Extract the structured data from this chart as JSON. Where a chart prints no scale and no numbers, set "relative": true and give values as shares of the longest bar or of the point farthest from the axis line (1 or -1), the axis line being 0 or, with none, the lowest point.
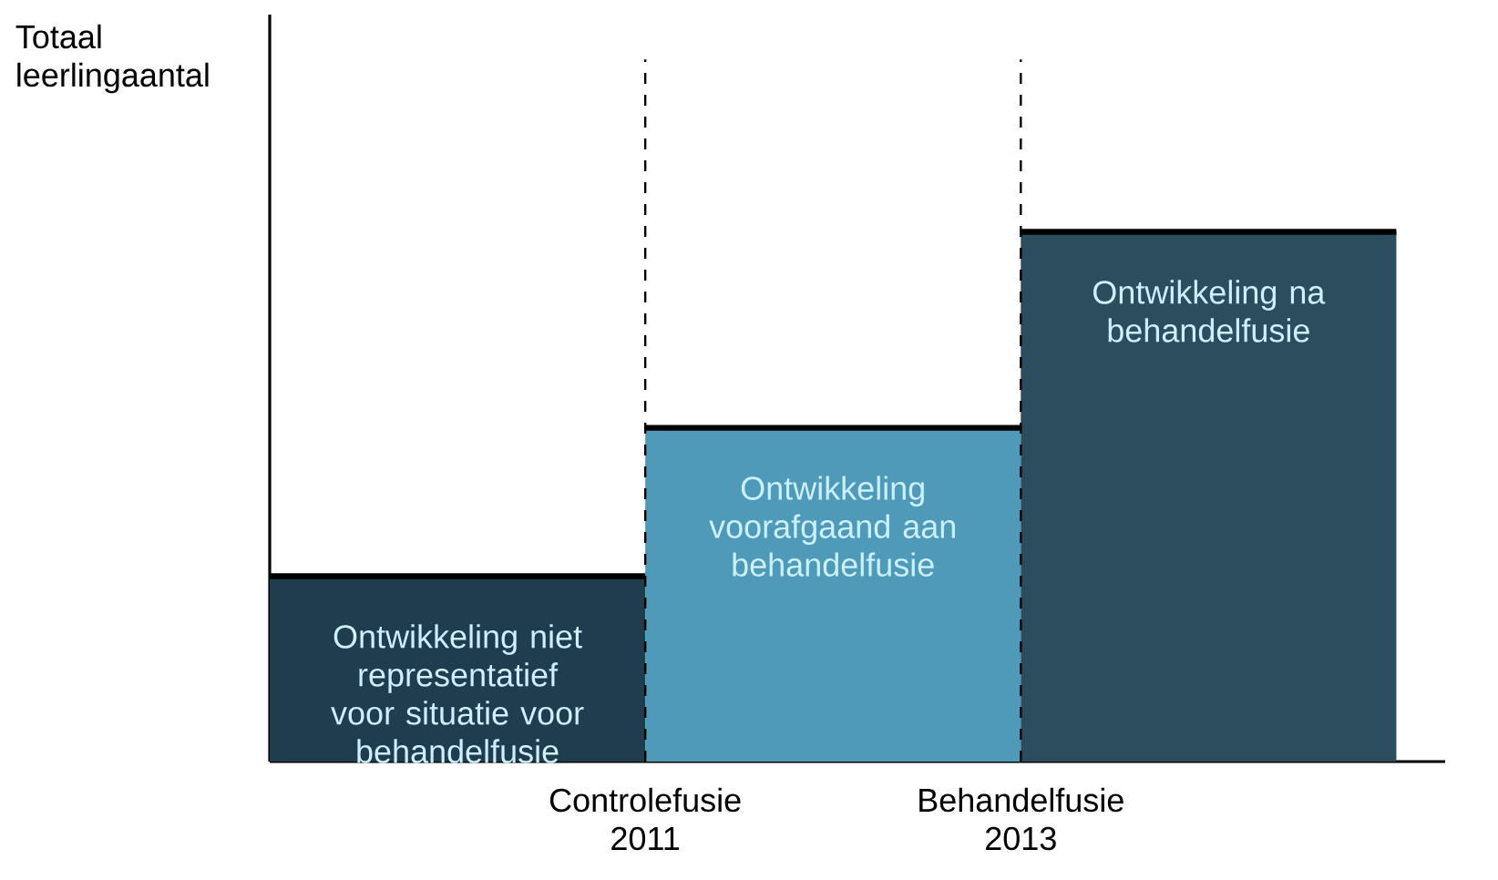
{
  "chart_data": {
    "type": "bar",
    "relative": true,
    "ylabel": "Totaal leerlingaantal",
    "categories": [
      null,
      null,
      null
    ],
    "values": [
      0.35,
      0.63,
      1
    ],
    "colors": [
      "#1f3d4d",
      "#4f9ab8",
      "#2b4d5e"
    ],
    "annotations": [
      "Ontwikkeling niet representatief voor situatie voor behandelfusie",
      "Ontwikkeling voorafgaand aan behandelfusie",
      "Ontwikkeling na behandelfusie",
      "Controlefusie 2011",
      "Behandelfusie 2013"
    ]
  }
}
